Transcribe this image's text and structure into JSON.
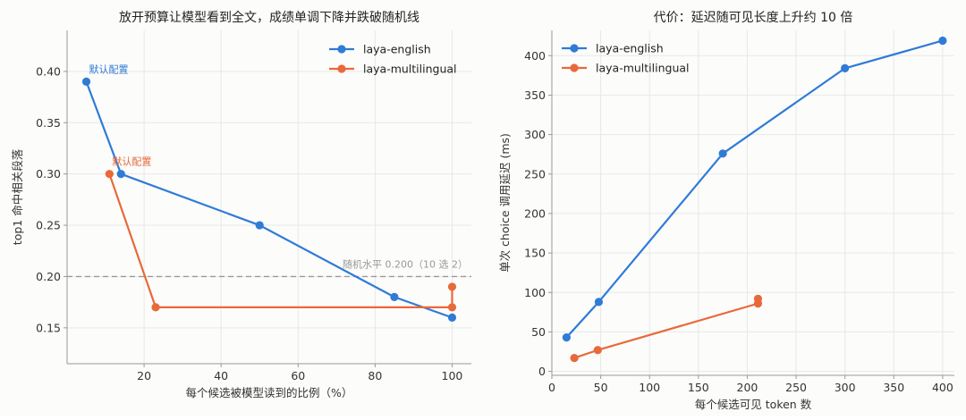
{
  "colors": {
    "english": "#2f7bd6",
    "multilingual": "#e8693a",
    "reference_line": "#999999",
    "reference_text": "#999999"
  },
  "chart_data": [
    {
      "type": "line",
      "title": "放开预算让模型看到全文，成绩单调下降并跌破随机线",
      "xlabel": "每个候选被模型读到的比例（%）",
      "ylabel": "top1 命中相关段落",
      "xlim": [
        0,
        105
      ],
      "ylim": [
        0.115,
        0.44
      ],
      "xticks": [
        20,
        40,
        60,
        80,
        100
      ],
      "yticks": [
        0.15,
        0.2,
        0.25,
        0.3,
        0.35,
        0.4
      ],
      "ytick_labels": [
        "0.15",
        "0.20",
        "0.25",
        "0.30",
        "0.35",
        "0.40"
      ],
      "grid": true,
      "legend_position": "upper right",
      "series": [
        {
          "name": "laya-english",
          "color_key": "english",
          "x": [
            5,
            14,
            50,
            85,
            100
          ],
          "y": [
            0.39,
            0.3,
            0.25,
            0.18,
            0.16
          ]
        },
        {
          "name": "laya-multilingual",
          "color_key": "multilingual",
          "x": [
            11,
            23,
            100,
            100
          ],
          "y": [
            0.3,
            0.17,
            0.17,
            0.19
          ]
        }
      ],
      "annotations": [
        {
          "text": "默认配置",
          "x": 5,
          "y": 0.39,
          "color_key": "english"
        },
        {
          "text": "默认配置",
          "x": 11,
          "y": 0.3,
          "color_key": "multilingual"
        }
      ],
      "reference_line": {
        "y": 0.2,
        "label": "随机水平 0.200（10 选 2）"
      }
    },
    {
      "type": "line",
      "title": "代价：延迟随可见长度上升约 10 倍",
      "xlabel": "每个候选可见 token 数",
      "ylabel": "单次 choice 调用延迟 (ms)",
      "xlim": [
        0,
        412
      ],
      "ylim": [
        -5,
        432
      ],
      "xticks": [
        0,
        50,
        100,
        150,
        200,
        250,
        300,
        350,
        400
      ],
      "yticks": [
        0,
        50,
        100,
        150,
        200,
        250,
        300,
        350,
        400
      ],
      "grid": true,
      "legend_position": "upper left",
      "series": [
        {
          "name": "laya-english",
          "color_key": "english",
          "x": [
            15,
            48,
            175,
            300,
            400
          ],
          "y": [
            43,
            88,
            276,
            384,
            419
          ]
        },
        {
          "name": "laya-multilingual",
          "color_key": "multilingual",
          "x": [
            23,
            47,
            211,
            211
          ],
          "y": [
            17,
            27,
            86,
            92
          ]
        }
      ]
    }
  ]
}
